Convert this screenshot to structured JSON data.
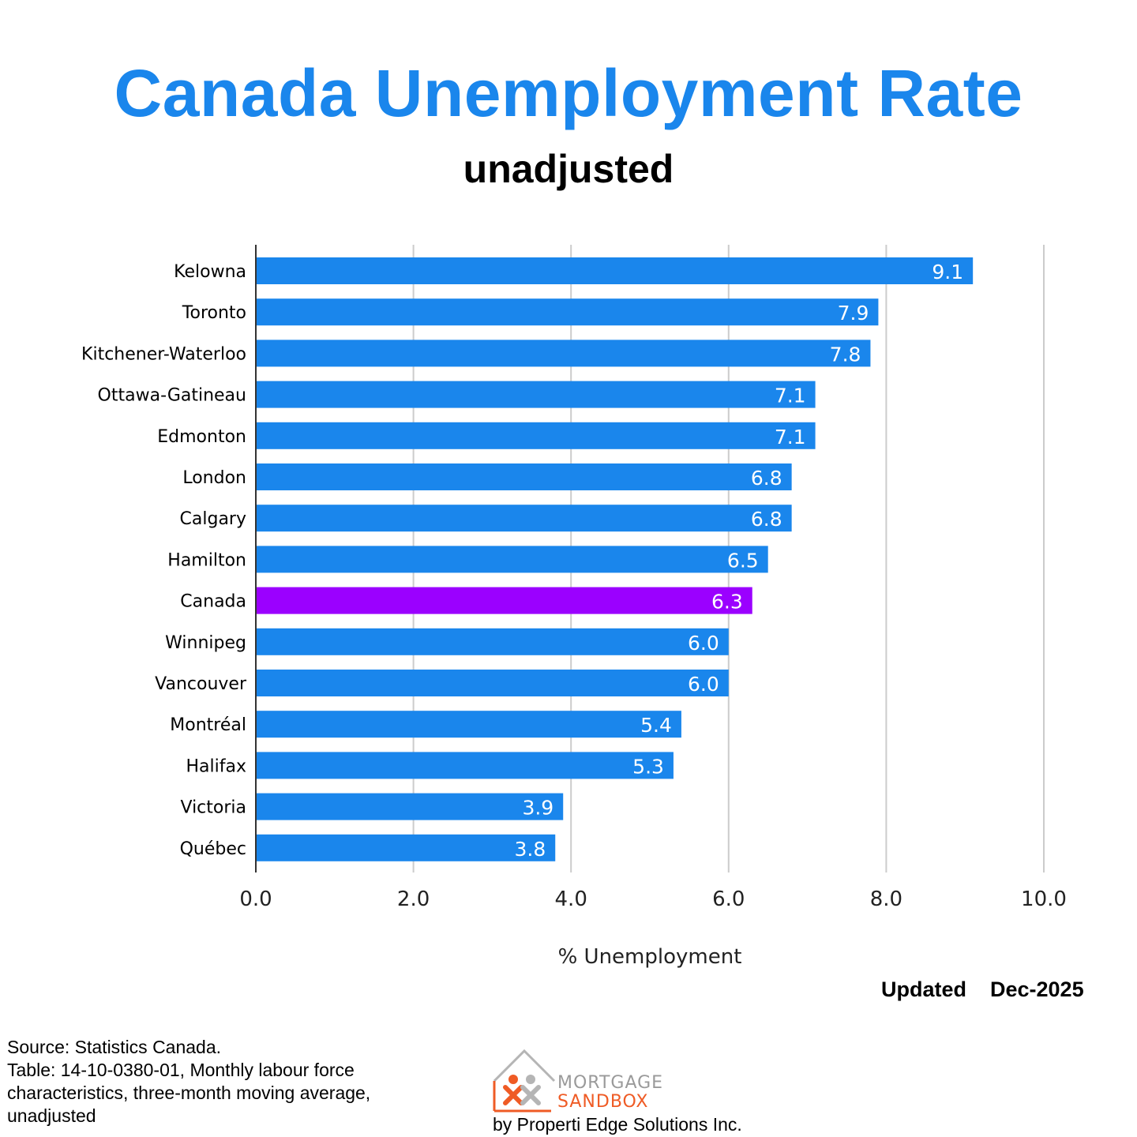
{
  "chart_data": {
    "type": "bar",
    "orientation": "horizontal",
    "title": "Canada Unemployment Rate",
    "subtitle": "unadjusted",
    "xlabel": "% Unemployment",
    "xlim": [
      0,
      10
    ],
    "x_ticks": [
      "0.0",
      "2.0",
      "4.0",
      "6.0",
      "8.0",
      "10.0"
    ],
    "grid": true,
    "categories": [
      "Kelowna",
      "Toronto",
      "Kitchener-Waterloo",
      "Ottawa-Gatineau",
      "Edmonton",
      "London",
      "Calgary",
      "Hamilton",
      "Canada",
      "Winnipeg",
      "Vancouver",
      "Montréal",
      "Halifax",
      "Victoria",
      "Québec"
    ],
    "values": [
      9.1,
      7.9,
      7.8,
      7.1,
      7.1,
      6.8,
      6.8,
      6.5,
      6.3,
      6.0,
      6.0,
      5.4,
      5.3,
      3.9,
      3.8
    ],
    "value_labels": [
      "9.1",
      "7.9",
      "7.8",
      "7.1",
      "7.1",
      "6.8",
      "6.8",
      "6.5",
      "6.3",
      "6.0",
      "6.0",
      "5.4",
      "5.3",
      "3.9",
      "3.8"
    ],
    "colors": {
      "bar": "#1a86ec",
      "highlight": "#9b00ff",
      "title": "#1a86ec",
      "grid": "#cccccc",
      "value_label": "#ffffff"
    },
    "highlight_category": "Canada"
  },
  "footer": {
    "updated": "Updated    Dec-2025",
    "source_lines": [
      "Source: Statistics Canada.",
      "Table: 14-10-0380-01, Monthly labour force characteristics, three-month moving average, unadjusted"
    ]
  },
  "logo": {
    "line1": "MORTGAGE",
    "line2": "SANDBOX",
    "byline": "by Properti Edge Solutions Inc."
  }
}
